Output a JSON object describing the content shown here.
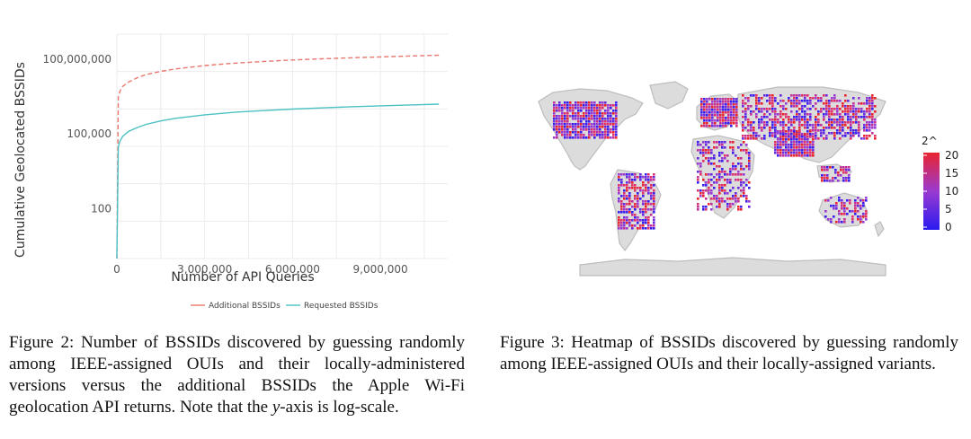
{
  "chart_data": {
    "type": "line",
    "xlabel": "Number of API Queries",
    "ylabel": "Cumulative Geolocated BSSIDs",
    "x_scale": "linear",
    "y_scale": "log",
    "x_ticks": [
      "0",
      "3,000,000",
      "6,000,000",
      "9,000,000"
    ],
    "x_tick_values": [
      0,
      3000000,
      6000000,
      9000000
    ],
    "y_ticks": [
      "100",
      "100,000",
      "100,000,000"
    ],
    "y_tick_values": [
      100,
      100000,
      100000000
    ],
    "xlim": [
      0,
      11300000
    ],
    "ylim": [
      1,
      1000000000
    ],
    "grid": true,
    "legend_position": "bottom",
    "series": [
      {
        "name": "Additional BSSIDs",
        "color": "#e8776d",
        "style": "dashed",
        "x": [
          0,
          50000,
          100000,
          200000,
          400000,
          700000,
          1000000,
          1500000,
          2000000,
          3000000,
          4000000,
          5000000,
          6000000,
          7000000,
          8000000,
          9000000,
          10000000,
          11000000
        ],
        "y": [
          1,
          3000000,
          5000000,
          8000000,
          12000000,
          18000000,
          24000000,
          32000000,
          40000000,
          55000000,
          68000000,
          80000000,
          92000000,
          102000000,
          112000000,
          122000000,
          132000000,
          142000000
        ]
      },
      {
        "name": "Requested BSSIDs",
        "color": "#4cc1c4",
        "style": "solid",
        "x": [
          0,
          50000,
          100000,
          200000,
          400000,
          700000,
          1000000,
          1500000,
          2000000,
          3000000,
          4000000,
          5000000,
          6000000,
          7000000,
          8000000,
          9000000,
          10000000,
          11000000
        ],
        "y": [
          1,
          30000,
          50000,
          80000,
          125000,
          180000,
          240000,
          330000,
          420000,
          580000,
          730000,
          860000,
          990000,
          1100000,
          1220000,
          1330000,
          1440000,
          1560000
        ]
      }
    ]
  },
  "figure3": {
    "legend_title": "2^",
    "legend_ticks": [
      "20",
      "15",
      "10",
      "5",
      "0"
    ],
    "legend_tick_values": [
      20,
      15,
      10,
      5,
      0
    ],
    "color_low": "#2a1bf0",
    "color_high": "#e8242f"
  },
  "captions": {
    "fig2_pre": "Figure 2: Number of BSSIDs discovered by guessing randomly among IEEE-assigned OUIs and their locally-administered versions versus the additional BSSIDs the Apple Wi-Fi geolocation API returns. Note that the ",
    "fig2_var": "y",
    "fig2_post": "-axis is log-scale.",
    "fig3": "Figure 3: Heatmap of BSSIDs discovered by guessing randomly among IEEE-assigned OUIs and their locally-assigned variants."
  }
}
